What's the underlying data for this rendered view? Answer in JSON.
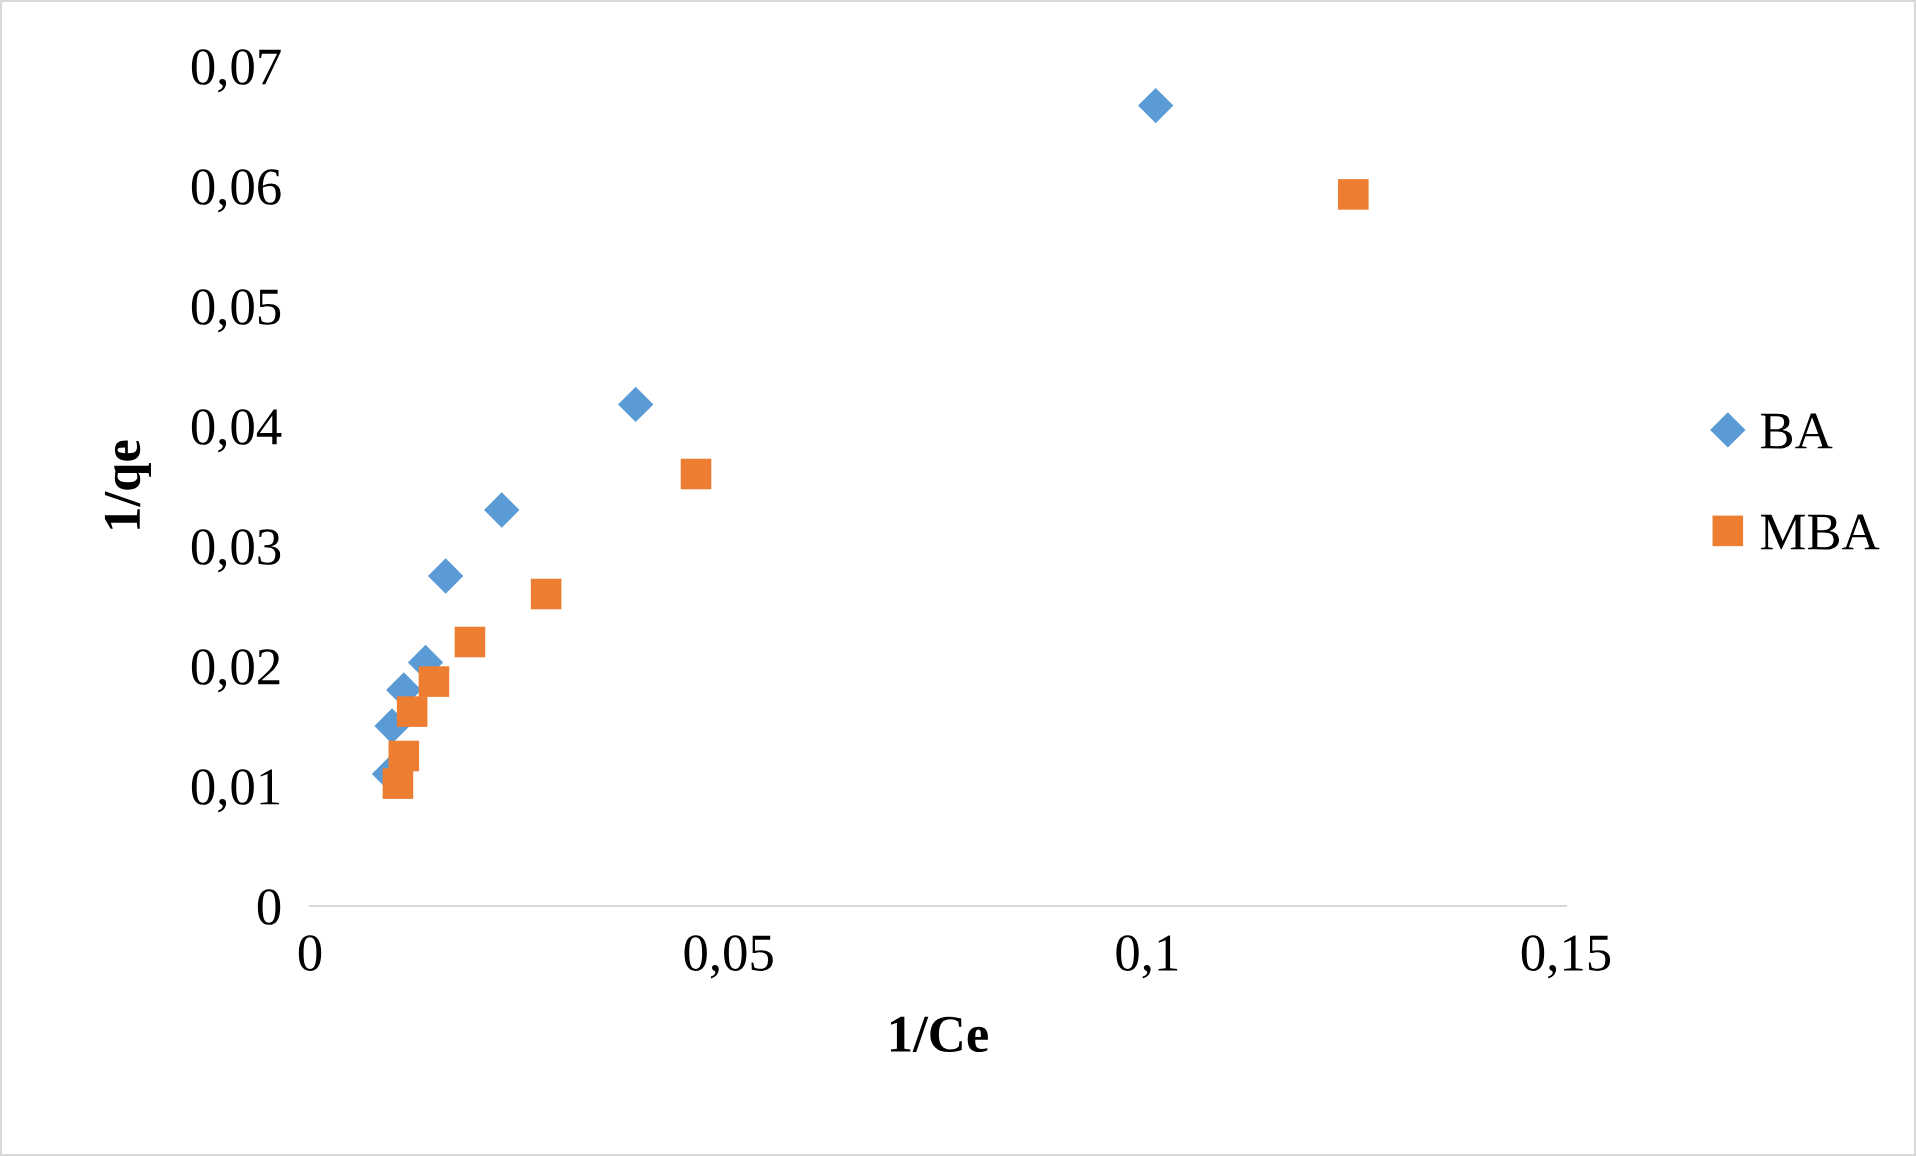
{
  "chart_data": {
    "type": "scatter",
    "xlabel": "1/Ce",
    "ylabel": "1/qe",
    "xlim": [
      0,
      0.15
    ],
    "ylim": [
      0,
      0.07
    ],
    "xticks": [
      {
        "value": 0,
        "label": "0"
      },
      {
        "value": 0.05,
        "label": "0,05"
      },
      {
        "value": 0.1,
        "label": "0,1"
      },
      {
        "value": 0.15,
        "label": "0,15"
      }
    ],
    "yticks": [
      {
        "value": 0,
        "label": "0"
      },
      {
        "value": 0.01,
        "label": "0,01"
      },
      {
        "value": 0.02,
        "label": "0,02"
      },
      {
        "value": 0.03,
        "label": "0,03"
      },
      {
        "value": 0.04,
        "label": "0,04"
      },
      {
        "value": 0.05,
        "label": "0,05"
      },
      {
        "value": 0.06,
        "label": "0,06"
      },
      {
        "value": 0.07,
        "label": "0,07"
      }
    ],
    "grid": false,
    "legend": "right",
    "series": [
      {
        "name": "BA",
        "color": "#5b9bd5",
        "marker": "diamond",
        "x": [
          0.101,
          0.0389,
          0.0229,
          0.0162,
          0.0138,
          0.0112,
          0.0098,
          0.0095
        ],
        "values": [
          0.0667,
          0.0418,
          0.033,
          0.0275,
          0.0203,
          0.018,
          0.015,
          0.011
        ]
      },
      {
        "name": "MBA",
        "color": "#ed7d31",
        "marker": "square",
        "x": [
          0.1246,
          0.0461,
          0.0282,
          0.0191,
          0.0148,
          0.0122,
          0.0112,
          0.0105
        ],
        "values": [
          0.0593,
          0.036,
          0.026,
          0.022,
          0.0187,
          0.0162,
          0.0125,
          0.0102
        ]
      }
    ]
  }
}
